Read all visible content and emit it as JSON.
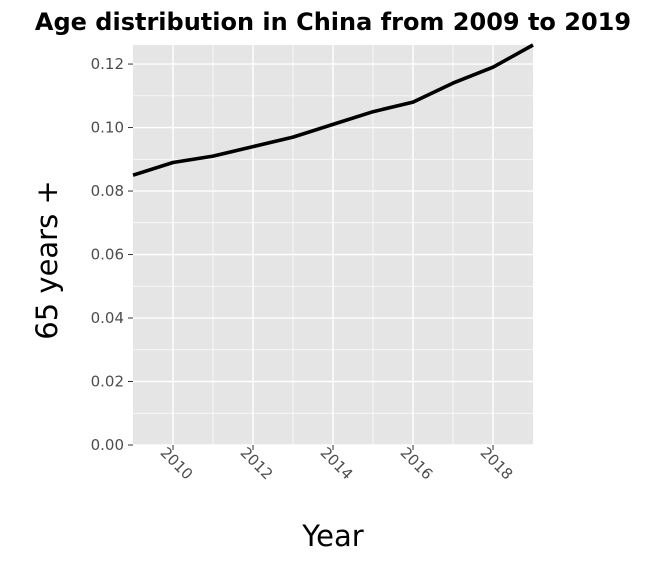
{
  "chart_data": {
    "type": "line",
    "title": "Age distribution in China from 2009 to 2019",
    "xlabel": "Year",
    "ylabel": "65 years +",
    "xlim": [
      2009,
      2019
    ],
    "ylim": [
      0,
      0.126
    ],
    "x_ticks": [
      2010,
      2012,
      2014,
      2016,
      2018
    ],
    "x_tick_labels": [
      "2010",
      "2012",
      "2014",
      "2016",
      "2018"
    ],
    "y_ticks": [
      0,
      0.02,
      0.04,
      0.06,
      0.08,
      0.1,
      0.12
    ],
    "y_tick_labels": [
      "0.00",
      "0.02",
      "0.04",
      "0.06",
      "0.08",
      "0.10",
      "0.12"
    ],
    "grid": true,
    "series": [
      {
        "x": [
          2009,
          2010,
          2011,
          2012,
          2013,
          2014,
          2015,
          2016,
          2017,
          2018,
          2019
        ],
        "values": [
          0.085,
          0.089,
          0.091,
          0.094,
          0.097,
          0.101,
          0.105,
          0.108,
          0.114,
          0.119,
          0.126
        ],
        "color": "#000000"
      }
    ],
    "colors": {
      "panel": "#e5e5e5",
      "grid": "#ffffff",
      "line": "#000000"
    }
  }
}
